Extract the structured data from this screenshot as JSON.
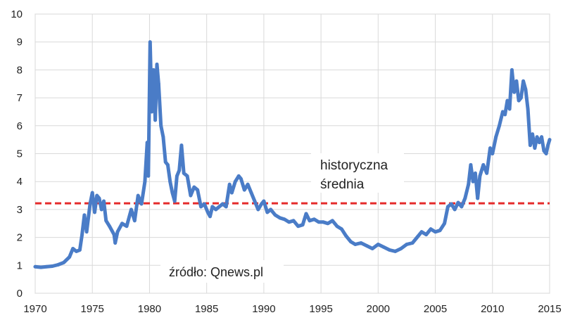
{
  "chart_data": {
    "type": "line",
    "title": "",
    "xlabel": "",
    "ylabel": "",
    "xlim": [
      1970,
      2015
    ],
    "ylim": [
      0,
      10
    ],
    "x_ticks": [
      1970,
      1975,
      1980,
      1985,
      1990,
      1995,
      2000,
      2005,
      2010,
      2015
    ],
    "y_ticks": [
      0,
      1,
      2,
      3,
      4,
      5,
      6,
      7,
      8,
      9,
      10
    ],
    "grid": true,
    "series": [
      {
        "color": "#4a7cc7",
        "points": [
          [
            1970.0,
            0.95
          ],
          [
            1970.5,
            0.93
          ],
          [
            1971.0,
            0.95
          ],
          [
            1971.5,
            0.97
          ],
          [
            1972.0,
            1.02
          ],
          [
            1972.5,
            1.1
          ],
          [
            1973.0,
            1.3
          ],
          [
            1973.3,
            1.6
          ],
          [
            1973.6,
            1.5
          ],
          [
            1973.9,
            1.55
          ],
          [
            1974.1,
            2.1
          ],
          [
            1974.3,
            2.8
          ],
          [
            1974.5,
            2.2
          ],
          [
            1974.8,
            3.2
          ],
          [
            1975.0,
            3.6
          ],
          [
            1975.2,
            2.9
          ],
          [
            1975.4,
            3.5
          ],
          [
            1975.6,
            3.4
          ],
          [
            1975.8,
            3.0
          ],
          [
            1976.0,
            3.3
          ],
          [
            1976.2,
            2.6
          ],
          [
            1976.5,
            2.4
          ],
          [
            1976.9,
            2.1
          ],
          [
            1977.0,
            1.8
          ],
          [
            1977.2,
            2.2
          ],
          [
            1977.6,
            2.5
          ],
          [
            1978.0,
            2.4
          ],
          [
            1978.4,
            3.0
          ],
          [
            1978.7,
            2.6
          ],
          [
            1979.0,
            3.5
          ],
          [
            1979.3,
            3.2
          ],
          [
            1979.6,
            4.0
          ],
          [
            1979.8,
            5.4
          ],
          [
            1979.9,
            4.2
          ],
          [
            1980.05,
            9.0
          ],
          [
            1980.2,
            6.5
          ],
          [
            1980.35,
            8.0
          ],
          [
            1980.5,
            6.2
          ],
          [
            1980.65,
            8.2
          ],
          [
            1980.8,
            7.5
          ],
          [
            1981.0,
            6.0
          ],
          [
            1981.2,
            5.6
          ],
          [
            1981.4,
            4.7
          ],
          [
            1981.6,
            4.6
          ],
          [
            1981.8,
            4.0
          ],
          [
            1982.0,
            3.6
          ],
          [
            1982.2,
            3.3
          ],
          [
            1982.4,
            4.2
          ],
          [
            1982.6,
            4.4
          ],
          [
            1982.8,
            5.3
          ],
          [
            1983.0,
            4.3
          ],
          [
            1983.3,
            4.2
          ],
          [
            1983.6,
            3.5
          ],
          [
            1983.9,
            3.8
          ],
          [
            1984.2,
            3.7
          ],
          [
            1984.5,
            3.1
          ],
          [
            1984.8,
            3.2
          ],
          [
            1985.1,
            2.9
          ],
          [
            1985.3,
            2.75
          ],
          [
            1985.5,
            3.1
          ],
          [
            1985.8,
            3.0
          ],
          [
            1986.1,
            3.1
          ],
          [
            1986.4,
            3.2
          ],
          [
            1986.7,
            3.1
          ],
          [
            1987.0,
            3.9
          ],
          [
            1987.2,
            3.6
          ],
          [
            1987.5,
            4.0
          ],
          [
            1987.8,
            4.2
          ],
          [
            1988.0,
            4.1
          ],
          [
            1988.3,
            3.7
          ],
          [
            1988.6,
            3.9
          ],
          [
            1988.9,
            3.6
          ],
          [
            1989.2,
            3.3
          ],
          [
            1989.5,
            3.0
          ],
          [
            1989.8,
            3.2
          ],
          [
            1990.0,
            3.3
          ],
          [
            1990.3,
            2.9
          ],
          [
            1990.6,
            3.0
          ],
          [
            1991.0,
            2.8
          ],
          [
            1991.4,
            2.7
          ],
          [
            1991.8,
            2.65
          ],
          [
            1992.2,
            2.55
          ],
          [
            1992.6,
            2.6
          ],
          [
            1993.0,
            2.4
          ],
          [
            1993.4,
            2.45
          ],
          [
            1993.7,
            2.85
          ],
          [
            1994.0,
            2.6
          ],
          [
            1994.4,
            2.65
          ],
          [
            1994.8,
            2.55
          ],
          [
            1995.2,
            2.55
          ],
          [
            1995.6,
            2.5
          ],
          [
            1996.0,
            2.6
          ],
          [
            1996.4,
            2.4
          ],
          [
            1996.8,
            2.3
          ],
          [
            1997.2,
            2.05
          ],
          [
            1997.6,
            1.85
          ],
          [
            1998.0,
            1.75
          ],
          [
            1998.5,
            1.8
          ],
          [
            1999.0,
            1.7
          ],
          [
            1999.5,
            1.6
          ],
          [
            2000.0,
            1.75
          ],
          [
            2000.5,
            1.65
          ],
          [
            2001.0,
            1.55
          ],
          [
            2001.5,
            1.5
          ],
          [
            2002.0,
            1.6
          ],
          [
            2002.5,
            1.75
          ],
          [
            2003.0,
            1.8
          ],
          [
            2003.4,
            2.0
          ],
          [
            2003.8,
            2.2
          ],
          [
            2004.2,
            2.1
          ],
          [
            2004.6,
            2.3
          ],
          [
            2005.0,
            2.2
          ],
          [
            2005.4,
            2.25
          ],
          [
            2005.8,
            2.5
          ],
          [
            2006.1,
            3.1
          ],
          [
            2006.4,
            3.2
          ],
          [
            2006.7,
            3.0
          ],
          [
            2007.0,
            3.25
          ],
          [
            2007.3,
            3.1
          ],
          [
            2007.6,
            3.4
          ],
          [
            2007.9,
            3.9
          ],
          [
            2008.1,
            4.6
          ],
          [
            2008.3,
            4.0
          ],
          [
            2008.5,
            4.3
          ],
          [
            2008.7,
            3.4
          ],
          [
            2008.9,
            4.2
          ],
          [
            2009.2,
            4.6
          ],
          [
            2009.5,
            4.3
          ],
          [
            2009.8,
            5.2
          ],
          [
            2010.0,
            5.0
          ],
          [
            2010.3,
            5.6
          ],
          [
            2010.6,
            6.0
          ],
          [
            2010.9,
            6.5
          ],
          [
            2011.1,
            6.4
          ],
          [
            2011.3,
            6.9
          ],
          [
            2011.5,
            6.6
          ],
          [
            2011.7,
            8.0
          ],
          [
            2011.9,
            7.2
          ],
          [
            2012.1,
            7.6
          ],
          [
            2012.3,
            6.9
          ],
          [
            2012.5,
            7.0
          ],
          [
            2012.7,
            7.6
          ],
          [
            2012.9,
            7.3
          ],
          [
            2013.1,
            6.6
          ],
          [
            2013.3,
            5.3
          ],
          [
            2013.5,
            5.7
          ],
          [
            2013.7,
            5.2
          ],
          [
            2013.9,
            5.6
          ],
          [
            2014.1,
            5.4
          ],
          [
            2014.3,
            5.6
          ],
          [
            2014.5,
            5.1
          ],
          [
            2014.7,
            5.0
          ],
          [
            2014.85,
            5.3
          ],
          [
            2015.0,
            5.5
          ]
        ]
      }
    ],
    "reference_line": {
      "y": 3.22,
      "color": "#e52a2a",
      "style": "dashed"
    },
    "annotations": {
      "avg_line1": "historyczna",
      "avg_line2": "średnia",
      "source": "źródło: Qnews.pl"
    }
  }
}
